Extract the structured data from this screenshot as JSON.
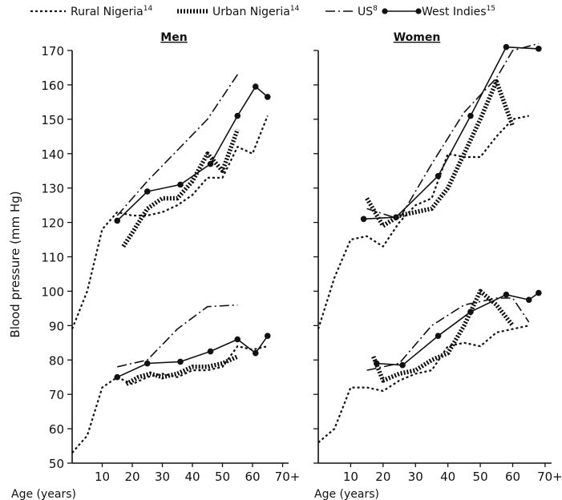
{
  "figure": {
    "ylabel": "Blood pressure (mm Hg)",
    "legend": [
      {
        "name": "Rural Nigeria",
        "sup": "14",
        "style": "dotted"
      },
      {
        "name": "Urban Nigeria",
        "sup": "14",
        "style": "cross"
      },
      {
        "name": "US",
        "sup": "8",
        "style": "dashdot"
      },
      {
        "name": "West Indies",
        "sup": "15",
        "style": "solid-dot"
      }
    ]
  },
  "chart_data": [
    {
      "type": "line",
      "title": "Men",
      "xlabel": "Age (years)",
      "ylabel": "Blood pressure (mm Hg)",
      "xlim": [
        0,
        72
      ],
      "ylim": [
        50,
        170
      ],
      "xticks": [
        "10",
        "20",
        "30",
        "40",
        "50",
        "60",
        "70+"
      ],
      "yticks": [
        "50",
        "60",
        "70",
        "80",
        "90",
        "100",
        "110",
        "120",
        "130",
        "140",
        "150",
        "160",
        "170"
      ],
      "grid": false,
      "legend_position": "top",
      "series": [
        {
          "name": "Rural Nigeria",
          "style": "dotted",
          "points": [
            [
              0,
              89
            ],
            [
              5,
              100
            ],
            [
              10,
              118
            ],
            [
              15,
              123
            ],
            [
              20,
              122
            ],
            [
              25,
              122
            ],
            [
              30,
              123
            ],
            [
              35,
              125
            ],
            [
              40,
              128
            ],
            [
              45,
              133
            ],
            [
              50,
              133
            ],
            [
              55,
              142
            ],
            [
              60,
              140
            ],
            [
              65,
              151
            ]
          ]
        },
        {
          "name": "Rural Nigeria",
          "style": "dotted",
          "points": [
            [
              0,
              53
            ],
            [
              5,
              58
            ],
            [
              10,
              72
            ],
            [
              15,
              75
            ],
            [
              20,
              73
            ],
            [
              25,
              75
            ],
            [
              30,
              76
            ],
            [
              35,
              75
            ],
            [
              40,
              77
            ],
            [
              45,
              77
            ],
            [
              50,
              78
            ],
            [
              55,
              84
            ],
            [
              60,
              83
            ],
            [
              65,
              84
            ]
          ]
        },
        {
          "name": "Urban Nigeria",
          "style": "cross",
          "points": [
            [
              17,
              113
            ],
            [
              20,
              117
            ],
            [
              25,
              124
            ],
            [
              30,
              127
            ],
            [
              35,
              127
            ],
            [
              40,
              132
            ],
            [
              45,
              140
            ],
            [
              50,
              135
            ],
            [
              55,
              147
            ]
          ]
        },
        {
          "name": "Urban Nigeria",
          "style": "cross",
          "points": [
            [
              18,
              73
            ],
            [
              22,
              75
            ],
            [
              26,
              76
            ],
            [
              30,
              75
            ],
            [
              35,
              76
            ],
            [
              40,
              78
            ],
            [
              45,
              78
            ],
            [
              50,
              79
            ],
            [
              55,
              81
            ]
          ]
        },
        {
          "name": "US",
          "style": "dashdot",
          "points": [
            [
              15,
              122
            ],
            [
              25,
              132
            ],
            [
              35,
              141
            ],
            [
              45,
              150
            ],
            [
              55,
              163
            ]
          ]
        },
        {
          "name": "US",
          "style": "dashdot",
          "points": [
            [
              15,
              78
            ],
            [
              25,
              80
            ],
            [
              35,
              89
            ],
            [
              45,
              95.5
            ],
            [
              55,
              96
            ]
          ]
        },
        {
          "name": "West Indies",
          "style": "solid-dot",
          "points": [
            [
              15,
              120.5
            ],
            [
              25,
              129
            ],
            [
              36,
              131
            ],
            [
              46,
              137
            ],
            [
              55,
              151
            ],
            [
              61,
              159.5
            ],
            [
              65,
              156.5
            ]
          ]
        },
        {
          "name": "West Indies",
          "style": "solid-dot",
          "points": [
            [
              15,
              75
            ],
            [
              25,
              79
            ],
            [
              36,
              79.5
            ],
            [
              46,
              82.5
            ],
            [
              55,
              86
            ],
            [
              61,
              82
            ],
            [
              65,
              87
            ]
          ]
        }
      ]
    },
    {
      "type": "line",
      "title": "Women",
      "xlabel": "Age (years)",
      "ylabel": "",
      "xlim": [
        0,
        72
      ],
      "ylim": [
        50,
        170
      ],
      "xticks": [
        "10",
        "20",
        "30",
        "40",
        "50",
        "60",
        "70+"
      ],
      "yticks": [],
      "grid": false,
      "legend_position": "top",
      "series": [
        {
          "name": "Rural Nigeria",
          "style": "dotted",
          "points": [
            [
              0,
              89
            ],
            [
              5,
              104
            ],
            [
              10,
              115
            ],
            [
              15,
              116
            ],
            [
              20,
              113
            ],
            [
              25,
              120
            ],
            [
              30,
              125
            ],
            [
              35,
              127
            ],
            [
              40,
              140
            ],
            [
              45,
              139
            ],
            [
              50,
              139
            ],
            [
              55,
              145
            ],
            [
              60,
              150
            ],
            [
              65,
              151
            ]
          ]
        },
        {
          "name": "Rural Nigeria",
          "style": "dotted",
          "points": [
            [
              0,
              56
            ],
            [
              5,
              60
            ],
            [
              10,
              72
            ],
            [
              15,
              72
            ],
            [
              20,
              71
            ],
            [
              25,
              74
            ],
            [
              30,
              76
            ],
            [
              35,
              77
            ],
            [
              40,
              84
            ],
            [
              45,
              85
            ],
            [
              50,
              84
            ],
            [
              55,
              88
            ],
            [
              60,
              89
            ],
            [
              65,
              90
            ]
          ]
        },
        {
          "name": "Urban Nigeria",
          "style": "cross",
          "points": [
            [
              15,
              127
            ],
            [
              20,
              119
            ],
            [
              25,
              122
            ],
            [
              30,
              123
            ],
            [
              35,
              124
            ],
            [
              40,
              130
            ],
            [
              45,
              140
            ],
            [
              50,
              150
            ],
            [
              55,
              161
            ],
            [
              60,
              148
            ]
          ]
        },
        {
          "name": "Urban Nigeria",
          "style": "cross",
          "points": [
            [
              17,
              81
            ],
            [
              20,
              74
            ],
            [
              25,
              76
            ],
            [
              30,
              77
            ],
            [
              35,
              80
            ],
            [
              40,
              82
            ],
            [
              45,
              90
            ],
            [
              50,
              100
            ],
            [
              55,
              96
            ],
            [
              60,
              90
            ]
          ]
        },
        {
          "name": "US",
          "style": "dashdot",
          "points": [
            [
              15,
              124
            ],
            [
              25,
              121
            ],
            [
              35,
              137
            ],
            [
              45,
              152
            ],
            [
              55,
              162
            ],
            [
              60,
              170
            ],
            [
              68,
              172
            ]
          ]
        },
        {
          "name": "US",
          "style": "dashdot",
          "points": [
            [
              15,
              77
            ],
            [
              25,
              79
            ],
            [
              35,
              90
            ],
            [
              45,
              96
            ],
            [
              55,
              98
            ],
            [
              60,
              98
            ],
            [
              65,
              91
            ]
          ]
        },
        {
          "name": "West Indies",
          "style": "solid-dot",
          "points": [
            [
              14,
              121
            ],
            [
              24,
              121.5
            ],
            [
              37,
              133.5
            ],
            [
              47,
              151
            ],
            [
              58,
              171
            ],
            [
              68,
              170.5
            ]
          ]
        },
        {
          "name": "West Indies",
          "style": "solid-dot",
          "points": [
            [
              18,
              79
            ],
            [
              26,
              78.5
            ],
            [
              37,
              87
            ],
            [
              47,
              94
            ],
            [
              58,
              99
            ],
            [
              65,
              97.5
            ],
            [
              68,
              99.5
            ]
          ]
        }
      ]
    }
  ]
}
